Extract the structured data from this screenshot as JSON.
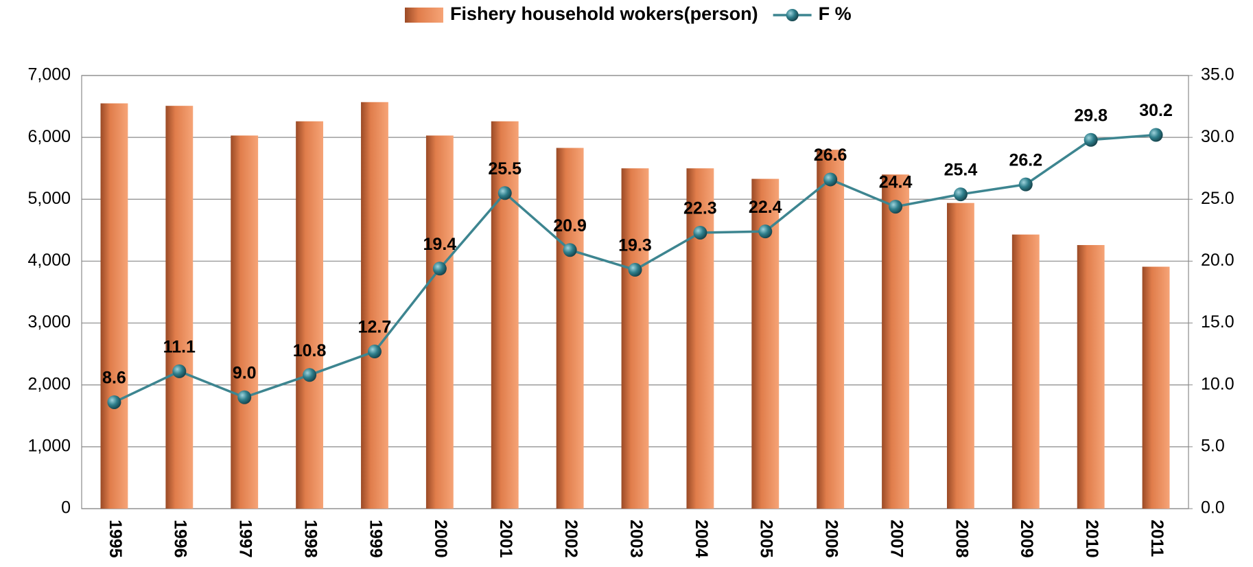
{
  "chart_data": {
    "type": "bar",
    "categories": [
      "1995",
      "1996",
      "1997",
      "1998",
      "1999",
      "2000",
      "2001",
      "2002",
      "2003",
      "2004",
      "2005",
      "2006",
      "2007",
      "2008",
      "2009",
      "2010",
      "2011"
    ],
    "series": [
      {
        "name": "Fishery household wokers(person)",
        "type": "bar",
        "color": "#e8834f",
        "values": [
          6550,
          6510,
          6030,
          6260,
          6570,
          6030,
          6260,
          5830,
          5500,
          5500,
          5330,
          5800,
          5400,
          4940,
          4430,
          4260,
          3910
        ]
      },
      {
        "name": "F %",
        "type": "line",
        "axis": "y2",
        "color": "#3d8590",
        "values": [
          8.6,
          11.1,
          9.0,
          10.8,
          12.7,
          19.4,
          25.5,
          20.9,
          19.3,
          22.3,
          22.4,
          26.6,
          24.4,
          25.4,
          26.2,
          29.8,
          30.2
        ],
        "value_labels": [
          "8.6",
          "11.1",
          "9.0",
          "10.8",
          "12.7",
          "19.4",
          "25.5",
          "20.9",
          "19.3",
          "22.3",
          "22.4",
          "26.6",
          "24.4",
          "25.4",
          "26.2",
          "29.8",
          "30.2"
        ]
      }
    ],
    "ylim": [
      0,
      7000
    ],
    "yticks": [
      0,
      {
        "value": 1000,
        "label": "1,000"
      },
      {
        "value": 2000,
        "label": "2,000"
      },
      {
        "value": 3000,
        "label": "3,000"
      },
      {
        "value": 4000,
        "label": "4,000"
      },
      {
        "value": 5000,
        "label": "5,000"
      },
      {
        "value": 6000,
        "label": "6,000"
      },
      {
        "value": 7000,
        "label": "7,000"
      }
    ],
    "y2lim": [
      0,
      35
    ],
    "y2ticks": [
      {
        "value": 0,
        "label": "0.0"
      },
      {
        "value": 5,
        "label": "5.0"
      },
      {
        "value": 10,
        "label": "10.0"
      },
      {
        "value": 15,
        "label": "15.0"
      },
      {
        "value": 20,
        "label": "20.0"
      },
      {
        "value": 25,
        "label": "25.0"
      },
      {
        "value": 30,
        "label": "30.0"
      },
      {
        "value": 35,
        "label": "35.0"
      }
    ],
    "grid": true,
    "legend": "top"
  }
}
